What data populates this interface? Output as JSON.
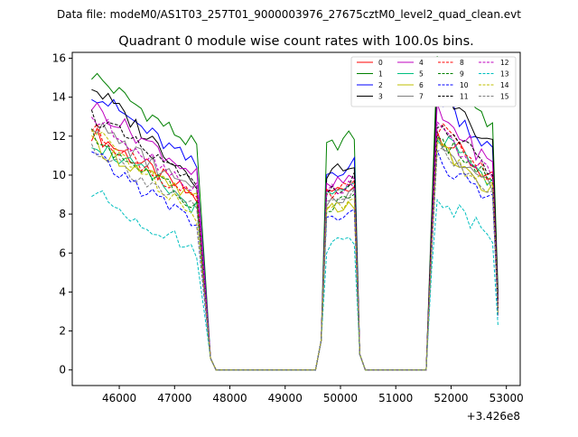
{
  "header": {
    "file_label": "Data file: modeM0/AS1T03_257T01_9000003976_27675cztM0_level2_quad_clean.evt"
  },
  "chart_data": {
    "type": "line",
    "title": "Quadrant 0 module wise count rates with 100.0s bins.",
    "xlabel": "",
    "ylabel": "",
    "x_offset_label": "+3.426e8",
    "xlim": [
      45150,
      53250
    ],
    "ylim": [
      -0.8,
      16.3
    ],
    "x_ticks": [
      46000,
      47000,
      48000,
      49000,
      50000,
      51000,
      52000,
      53000
    ],
    "y_ticks": [
      0,
      2,
      4,
      6,
      8,
      10,
      12,
      14,
      16
    ],
    "legend_position": "top-right",
    "segments": [
      {
        "start": 45500,
        "end": 47650
      },
      {
        "start": 49650,
        "end": 50350
      },
      {
        "start": 51650,
        "end": 52850
      }
    ],
    "series": [
      {
        "name": "0",
        "color": "#ff0000",
        "dash": "solid",
        "start": 12.2,
        "end": 8.7,
        "level2": 9.2,
        "level3": 10.2
      },
      {
        "name": "1",
        "color": "#008000",
        "dash": "solid",
        "start": 15.2,
        "end": 11.3,
        "level2": 11.6,
        "level3": 13.2
      },
      {
        "name": "2",
        "color": "#0000ff",
        "dash": "solid",
        "start": 14.3,
        "end": 10.3,
        "level2": 10.2,
        "level3": 11.8
      },
      {
        "name": "3",
        "color": "#000000",
        "dash": "solid",
        "start": 14.6,
        "end": 9.6,
        "level2": 10.3,
        "level3": 12.0
      },
      {
        "name": "4",
        "color": "#bf00bf",
        "dash": "solid",
        "start": 13.6,
        "end": 9.9,
        "level2": 9.5,
        "level3": 11.0
      },
      {
        "name": "5",
        "color": "#00bf7f",
        "dash": "solid",
        "start": 11.8,
        "end": 8.2,
        "level2": 9.0,
        "level3": 10.0
      },
      {
        "name": "6",
        "color": "#bfbf00",
        "dash": "solid",
        "start": 11.6,
        "end": 8.6,
        "level2": 8.3,
        "level3": 9.6
      },
      {
        "name": "7",
        "color": "#7f7f7f",
        "dash": "solid",
        "start": 12.7,
        "end": 8.9,
        "level2": 8.8,
        "level3": 9.9
      },
      {
        "name": "8",
        "color": "#ff0000",
        "dash": "dashed",
        "start": 12.4,
        "end": 8.5,
        "level2": 9.1,
        "level3": 10.4
      },
      {
        "name": "9",
        "color": "#008000",
        "dash": "dashed",
        "start": 12.0,
        "end": 8.3,
        "level2": 8.6,
        "level3": 10.0
      },
      {
        "name": "10",
        "color": "#0000ff",
        "dash": "dashed",
        "start": 11.0,
        "end": 7.4,
        "level2": 7.8,
        "level3": 9.0
      },
      {
        "name": "11",
        "color": "#000000",
        "dash": "dashed",
        "start": 13.1,
        "end": 9.3,
        "level2": 9.4,
        "level3": 10.6
      },
      {
        "name": "12",
        "color": "#bf00bf",
        "dash": "dashed",
        "start": 13.0,
        "end": 9.2,
        "level2": 9.3,
        "level3": 10.3
      },
      {
        "name": "13",
        "color": "#00bfbf",
        "dash": "dashed",
        "start": 9.1,
        "end": 6.0,
        "level2": 6.5,
        "level3": 7.4
      },
      {
        "name": "14",
        "color": "#bfbf00",
        "dash": "dashed",
        "start": 12.3,
        "end": 7.9,
        "level2": 8.4,
        "level3": 9.7
      },
      {
        "name": "15",
        "color": "#7f7f7f",
        "dash": "dashed",
        "start": 11.5,
        "end": 8.0,
        "level2": 8.7,
        "level3": 9.4
      }
    ]
  }
}
